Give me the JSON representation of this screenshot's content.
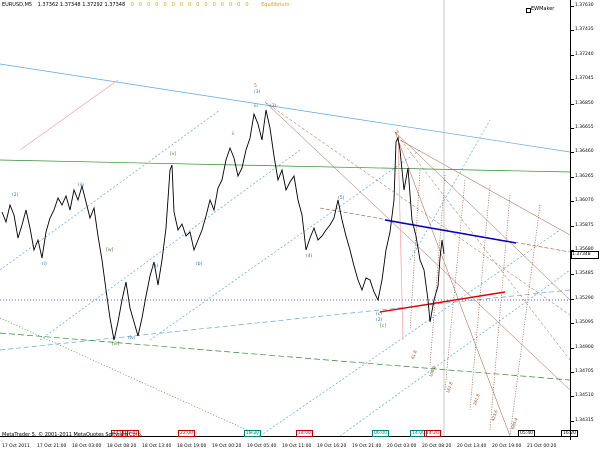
{
  "header": {
    "symbol": "EURUSD,M5",
    "ohlc": "1.37362 1.37348 1.37292 1.37348",
    "flags": [
      "0",
      "0",
      "0",
      "0",
      "0",
      "0",
      "0",
      "0",
      "0",
      "0",
      "0",
      "0",
      "0",
      "0",
      "0"
    ],
    "equilibrium": "Equilibrium"
  },
  "indicator": {
    "label": "EWMaker"
  },
  "copyright": "MetaTrader 5, © 2001-2011 MetaQuotes Software Corp.",
  "price_axis": {
    "ticks": [
      "1.37630",
      "1.37435",
      "1.37240",
      "1.37045",
      "1.36850",
      "1.36655",
      "1.36460",
      "1.36265",
      "1.36070",
      "1.35875",
      "1.35680",
      "1.35485",
      "1.35290",
      "1.35095",
      "1.34900",
      "1.34705",
      "1.34510",
      "1.34315"
    ],
    "current_price": "1.37348"
  },
  "time_axis": {
    "ticks": [
      "17 Oct 2011",
      "17 Oct 21:00",
      "18 Oct 03:00",
      "18 Oct 08:20",
      "18 Oct 13:40",
      "18 Oct 19:00",
      "19 Oct 00:20",
      "19 Oct 05:40",
      "19 Oct 11:00",
      "19 Oct 16:20",
      "19 Oct 21:40",
      "20 Oct 03:00",
      "20 Oct 08:20",
      "20 Oct 13:40",
      "20 Oct 19:00",
      "21 Oct 00:20"
    ],
    "tags": [
      {
        "text": "14:00",
        "color": "#c00000"
      },
      {
        "text": "16:30",
        "color": "#c00000"
      },
      {
        "text": "22:00",
        "color": "#c00000"
      },
      {
        "text": "18:30",
        "color": "#008080"
      },
      {
        "text": "14:00",
        "color": "#c00000"
      },
      {
        "text": "06:00",
        "color": "#008080"
      },
      {
        "text": "14:00",
        "color": "#008080"
      },
      {
        "text": "14:20",
        "color": "#c00000"
      },
      {
        "text": "05:40",
        "color": "#000000"
      },
      {
        "text": "16:20",
        "color": "#000000"
      }
    ]
  },
  "wave_labels": [
    {
      "text": "(2)",
      "color": "#2a6fb0"
    },
    {
      "text": "(i)",
      "color": "#2a6fb0"
    },
    {
      "text": "(ii)",
      "color": "#2a6fb0"
    },
    {
      "text": "[iii]",
      "color": "#2a8a2a"
    },
    {
      "text": "(iv)",
      "color": "#2a6fb0"
    },
    {
      "text": "[iv]",
      "color": "#2a8a2a"
    },
    {
      "text": "(a)",
      "color": "#2a6fb0"
    },
    {
      "text": "(b)",
      "color": "#2a6fb0"
    },
    {
      "text": "[v]",
      "color": "#2a8a2a"
    },
    {
      "text": "ii",
      "color": "#2a8a2a"
    },
    {
      "text": "iii",
      "color": "#2a8a2a"
    },
    {
      "text": "(3)",
      "color": "#2a6fb0"
    },
    {
      "text": "5",
      "color": "#a0522d"
    },
    {
      "text": "(3)",
      "color": "#2a6fb0"
    },
    {
      "text": "(4)",
      "color": "#2a6fb0"
    },
    {
      "text": "(5)",
      "color": "#2a6fb0"
    },
    {
      "text": "a",
      "color": "#a0522d"
    },
    {
      "text": "(c)",
      "color": "#2a6fb0"
    },
    {
      "text": "[c]",
      "color": "#2a8a2a"
    },
    {
      "text": "(2)",
      "color": "#2a6fb0"
    }
  ],
  "time_zone_labels": [
    "61.8",
    "100.0",
    "161.8",
    "261.8",
    "423.6",
    "685.4"
  ],
  "colors": {
    "candle": "#000000",
    "trend_blue": "#5ba7e0",
    "trend_green": "#2e8b2e",
    "fib_brown": "#a0522d",
    "signal_red": "#e00000",
    "signal_blue": "#0000c0",
    "axis": "#000000"
  }
}
